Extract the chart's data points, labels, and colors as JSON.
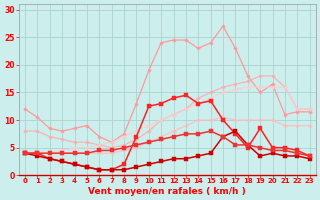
{
  "xlabel": "Vent moyen/en rafales ( km/h )",
  "bg_color": "#cceeed",
  "grid_color": "#aad4d0",
  "x_ticks": [
    0,
    1,
    2,
    3,
    4,
    5,
    6,
    7,
    8,
    9,
    10,
    11,
    12,
    13,
    14,
    15,
    16,
    17,
    18,
    19,
    20,
    21,
    22,
    23
  ],
  "ylim": [
    0,
    31
  ],
  "yticks": [
    0,
    5,
    10,
    15,
    20,
    25,
    30
  ],
  "lines": [
    {
      "color": "#ff9999",
      "alpha": 1.0,
      "lw": 0.9,
      "marker": "D",
      "ms": 1.8,
      "y": [
        12,
        10.5,
        8.5,
        8,
        8.5,
        9,
        7,
        6,
        7.5,
        13,
        19,
        24,
        24.5,
        24.5,
        23,
        24,
        27,
        23,
        18,
        15,
        16.5,
        11,
        11.5,
        11.5
      ]
    },
    {
      "color": "#ffaaaa",
      "alpha": 0.85,
      "lw": 0.9,
      "marker": "D",
      "ms": 1.8,
      "y": [
        8,
        8,
        7,
        6.5,
        6,
        6,
        5.5,
        5,
        5.5,
        6.5,
        8,
        10,
        11,
        12,
        14,
        15,
        16,
        16.5,
        17,
        18,
        18,
        16,
        12,
        12
      ]
    },
    {
      "color": "#ffbbbb",
      "alpha": 0.85,
      "lw": 0.9,
      "marker": "D",
      "ms": 1.8,
      "y": [
        4,
        4,
        4,
        4,
        4,
        4,
        4,
        4,
        4.5,
        5,
        6,
        7,
        8,
        9,
        10,
        10,
        10.5,
        10,
        10,
        10,
        10,
        9,
        9,
        9
      ]
    },
    {
      "color": "#ffcccc",
      "alpha": 0.85,
      "lw": 0.9,
      "marker": "D",
      "ms": 1.8,
      "y": [
        4,
        4,
        4,
        4.5,
        5,
        5,
        5.5,
        6,
        7,
        8,
        9,
        10,
        11,
        12,
        13,
        14,
        15,
        15.5,
        16,
        16,
        16,
        16,
        12,
        12
      ]
    },
    {
      "color": "#ff2222",
      "alpha": 1.0,
      "lw": 1.1,
      "marker": "s",
      "ms": 2.2,
      "y": [
        4,
        4,
        3,
        2.5,
        2,
        1.5,
        1,
        1,
        2,
        7,
        12.5,
        13,
        14,
        14.5,
        13,
        13.5,
        10,
        7.5,
        5,
        8.5,
        5,
        5,
        4.5,
        3.5
      ]
    },
    {
      "color": "#cc0000",
      "alpha": 1.0,
      "lw": 1.1,
      "marker": "s",
      "ms": 2.2,
      "y": [
        4,
        3.5,
        3,
        2.5,
        2,
        1.5,
        1,
        1,
        1,
        1.5,
        2,
        2.5,
        3,
        3,
        3.5,
        4,
        7,
        8,
        5.5,
        3.5,
        4,
        3.5,
        3.5,
        3
      ]
    },
    {
      "color": "#ee3333",
      "alpha": 1.0,
      "lw": 1.1,
      "marker": "s",
      "ms": 2.2,
      "y": [
        4,
        4,
        4,
        4,
        4,
        4,
        4.5,
        4.5,
        5,
        5.5,
        6,
        6.5,
        7,
        7.5,
        7.5,
        8,
        7,
        5.5,
        5.5,
        5,
        4.5,
        4.5,
        4,
        3.5
      ]
    }
  ]
}
